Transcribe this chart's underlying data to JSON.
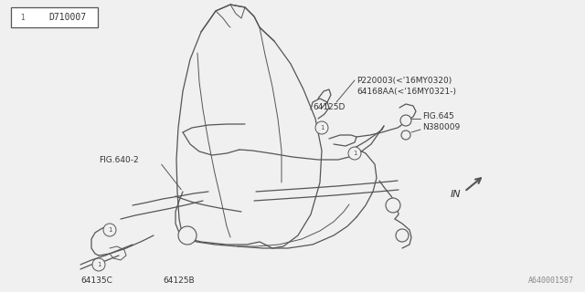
{
  "bg_color": "#f0f0f0",
  "line_color": "#555555",
  "text_color": "#333333",
  "title_box_text": "D710007",
  "bottom_label": "A640001587",
  "fig_width": 6.4,
  "fig_height": 3.2,
  "font_size_label": 6.5,
  "font_size_bottom": 6.0,
  "font_size_title": 7.0,
  "labels": {
    "fig640_2": "FIG.640-2",
    "p220003": "P220003(<'16MY0320)",
    "s641688aa": "64168AA(<'16MY0321-)",
    "s64125d": "64125D",
    "fig645": "FIG.645",
    "n380009": "N380009",
    "s64135c": "64135C",
    "s64125b": "64125B",
    "in_label": "IN"
  }
}
